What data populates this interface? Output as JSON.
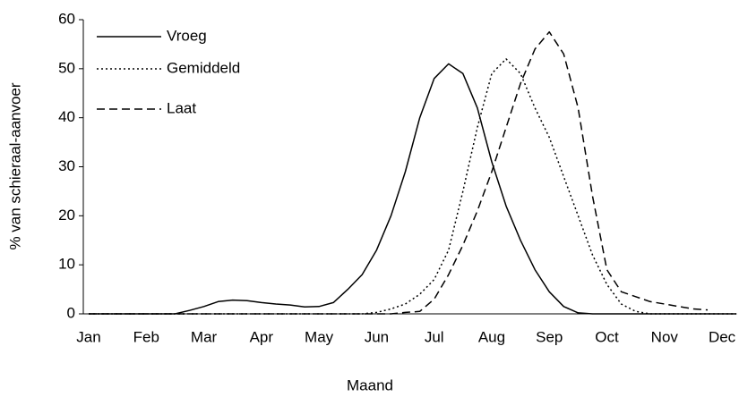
{
  "chart_data": {
    "type": "line",
    "x_label": "Maand",
    "y_label": "% van schieraal-aanvoer",
    "categories": [
      "Jan",
      null,
      null,
      null,
      "Feb",
      null,
      null,
      null,
      "Mar",
      null,
      null,
      null,
      "Apr",
      null,
      null,
      null,
      "May",
      null,
      null,
      null,
      "Jun",
      null,
      null,
      null,
      "Jul",
      null,
      null,
      null,
      "Aug",
      null,
      null,
      null,
      "Sep",
      null,
      null,
      null,
      "Oct",
      null,
      null,
      null,
      "Nov",
      null,
      null,
      null,
      "Dec",
      null
    ],
    "series": [
      {
        "name": "Vroeg",
        "color": "#000000",
        "dash": "solid",
        "values": [
          0,
          0,
          0,
          0,
          0,
          0,
          0,
          0.7,
          1.5,
          2.5,
          2.8,
          2.7,
          2.3,
          2,
          1.8,
          1.4,
          1.5,
          2.3,
          5,
          8,
          13,
          20,
          29,
          40,
          48,
          51,
          49,
          42,
          31,
          22,
          15,
          9,
          4.5,
          1.5,
          0.2,
          0,
          0,
          0,
          0,
          0,
          0,
          0,
          0,
          0,
          0,
          0
        ]
      },
      {
        "name": "Gemiddeld",
        "color": "#000000",
        "dash": "dotted",
        "values": [
          0,
          0,
          0,
          0,
          0,
          0,
          0,
          0,
          0,
          0,
          0,
          0,
          0,
          0,
          0,
          0,
          0,
          0,
          0,
          0,
          0.3,
          1,
          2,
          4,
          7,
          13,
          25,
          38,
          49,
          52,
          49,
          42,
          36,
          28,
          20,
          12,
          6,
          2,
          0.5,
          0,
          0,
          0,
          0,
          0,
          0,
          0
        ]
      },
      {
        "name": "Laat",
        "color": "#000000",
        "dash": "dashed",
        "values": [
          0,
          0,
          0,
          0,
          0,
          0,
          0,
          0,
          0,
          0,
          0,
          0,
          0,
          0,
          0,
          0,
          0,
          0,
          0,
          0,
          0,
          0,
          0.3,
          0.5,
          3,
          8,
          14,
          21,
          29,
          38,
          47,
          54,
          57.5,
          53,
          42,
          24,
          9,
          4.5,
          3.5,
          2.5,
          2,
          1.5,
          1,
          0.8,
          null,
          null
        ]
      }
    ],
    "ylim": [
      0,
      60
    ],
    "yticks": [
      0,
      10,
      20,
      30,
      40,
      50,
      60
    ],
    "legend": "upper left"
  }
}
